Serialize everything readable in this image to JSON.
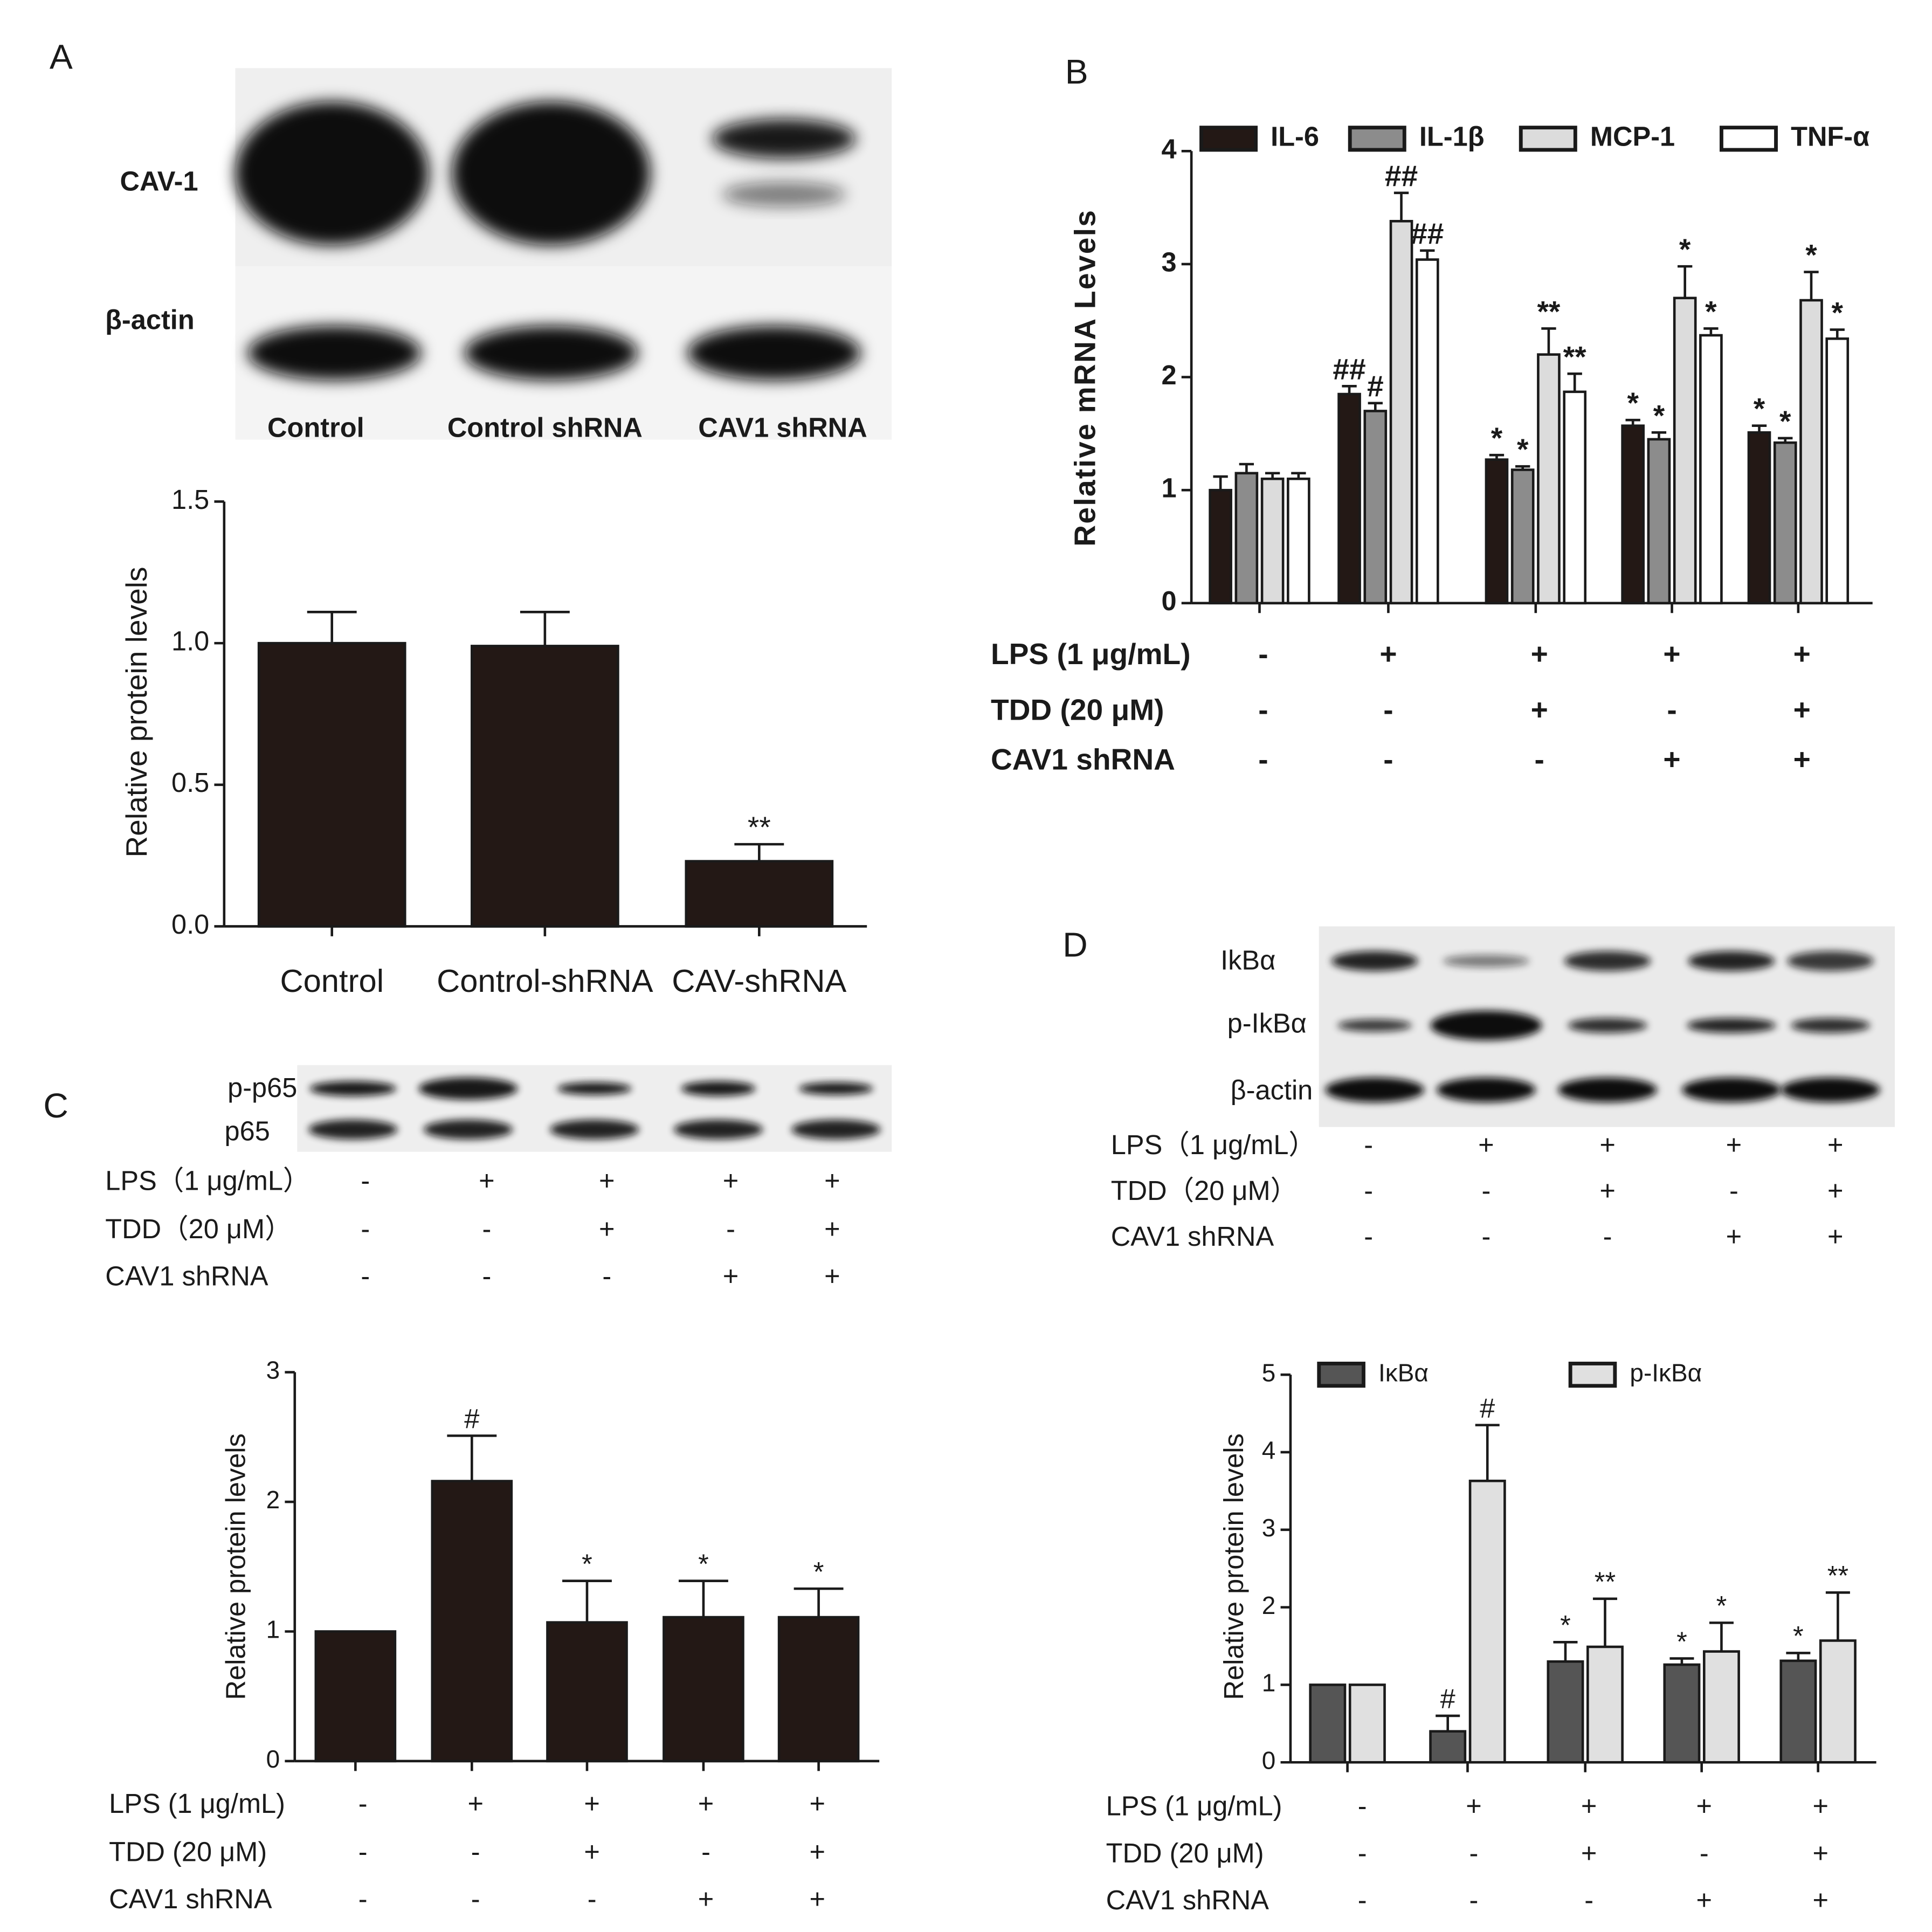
{
  "panel_labels": [
    "A",
    "B",
    "C",
    "D"
  ],
  "blot_a": {
    "rows": [
      "CAV-1",
      "β-actin"
    ],
    "lanes": [
      "Control",
      "Control shRNA",
      "CAV1 shRNA"
    ]
  },
  "blot_c": {
    "rows": [
      "p-p65",
      "p65"
    ],
    "conditions": [
      {
        "label": "LPS（1 μg/mL）",
        "signs": [
          "-",
          "+",
          "+",
          "+",
          "+"
        ]
      },
      {
        "label": "TDD（20 μM）",
        "signs": [
          "-",
          "-",
          "+",
          "-",
          "+"
        ]
      },
      {
        "label": "CAV1 shRNA",
        "signs": [
          "-",
          "-",
          "-",
          "+",
          "+"
        ]
      }
    ]
  },
  "blot_d": {
    "rows": [
      "IkBα",
      "p-IkBα",
      "β-actin"
    ],
    "conditions": [
      {
        "label": "LPS（1 μg/mL）",
        "signs": [
          "-",
          "+",
          "+",
          "+",
          "+"
        ]
      },
      {
        "label": "TDD（20 μM）",
        "signs": [
          "-",
          "-",
          "+",
          "-",
          "+"
        ]
      },
      {
        "label": "CAV1 shRNA",
        "signs": [
          "-",
          "-",
          "-",
          "+",
          "+"
        ]
      }
    ]
  },
  "chart_data": [
    {
      "type": "bar",
      "ylabel": "Relative protein levels",
      "categories": [
        "Control",
        "Control-shRNA",
        "CAV-shRNA"
      ],
      "series": [
        {
          "color": "#231815",
          "values": [
            1.0,
            0.99,
            0.23
          ],
          "errors": [
            0.11,
            0.12,
            0.06
          ],
          "annotations": [
            null,
            null,
            "**"
          ]
        }
      ],
      "ylim": [
        0,
        1.5
      ],
      "yticks": [
        {
          "value": 0,
          "label": "0.0"
        },
        0.5,
        {
          "value": 1,
          "label": "1.0"
        },
        1.5
      ]
    },
    {
      "type": "grouped-bar",
      "ylabel": "Relative mRNA Levels",
      "series": [
        {
          "name": "IL-6",
          "color": "#231815",
          "values": [
            1.0,
            1.85,
            1.27,
            1.57,
            1.51
          ],
          "errors": [
            0.12,
            0.07,
            0.04,
            0.05,
            0.06
          ],
          "annotations": [
            null,
            "##",
            "*",
            "*",
            "*"
          ]
        },
        {
          "name": "IL-1β",
          "color": "#8c8c8c",
          "values": [
            1.15,
            1.7,
            1.18,
            1.45,
            1.42
          ],
          "errors": [
            0.08,
            0.07,
            0.03,
            0.06,
            0.04
          ],
          "annotations": [
            null,
            "#",
            "*",
            "*",
            "*"
          ]
        },
        {
          "name": "MCP-1",
          "color": "#dcdcdc",
          "values": [
            1.1,
            3.38,
            2.2,
            2.7,
            2.68
          ],
          "errors": [
            0.05,
            0.25,
            0.23,
            0.28,
            0.25
          ],
          "annotations": [
            null,
            "##",
            "**",
            "*",
            "*"
          ]
        },
        {
          "name": "TNF-α",
          "color": "#ffffff",
          "values": [
            1.1,
            3.04,
            1.87,
            2.37,
            2.34
          ],
          "errors": [
            0.05,
            0.08,
            0.16,
            0.06,
            0.08
          ],
          "annotations": [
            null,
            "##",
            "**",
            "*",
            "*"
          ]
        }
      ],
      "conditions": [
        {
          "label": "LPS (1 μg/mL)",
          "signs": [
            "-",
            "+",
            "+",
            "+",
            "+"
          ]
        },
        {
          "label": "TDD (20 μM)",
          "signs": [
            "-",
            "-",
            "+",
            "-",
            "+"
          ]
        },
        {
          "label": "CAV1 shRNA",
          "signs": [
            "-",
            "-",
            "-",
            "+",
            "+"
          ]
        }
      ],
      "ylim": [
        0,
        4
      ],
      "yticks": [
        0,
        1,
        2,
        3,
        4
      ],
      "legend": "top"
    },
    {
      "type": "bar",
      "ylabel": "Relative protein levels",
      "series": [
        {
          "color": "#231815",
          "values": [
            1.0,
            2.16,
            1.07,
            1.11,
            1.11
          ],
          "errors": [
            null,
            0.35,
            0.32,
            0.28,
            0.22
          ],
          "annotations": [
            null,
            "#",
            "*",
            "*",
            "*"
          ]
        }
      ],
      "conditions": [
        {
          "label": "LPS (1 μg/mL)",
          "signs": [
            "-",
            "+",
            "+",
            "+",
            "+"
          ]
        },
        {
          "label": "TDD (20 μM)",
          "signs": [
            "-",
            "-",
            "+",
            "-",
            "+"
          ]
        },
        {
          "label": "CAV1 shRNA",
          "signs": [
            "-",
            "-",
            "-",
            "+",
            "+"
          ]
        }
      ],
      "ylim": [
        0,
        3
      ],
      "yticks": [
        0,
        1,
        2,
        3
      ]
    },
    {
      "type": "grouped-bar",
      "ylabel": "Relative protein levels",
      "series": [
        {
          "name": "IκBα",
          "color": "#555555",
          "values": [
            1.0,
            0.4,
            1.3,
            1.26,
            1.31
          ],
          "errors": [
            null,
            0.2,
            0.25,
            0.08,
            0.1
          ],
          "annotations": [
            null,
            "#",
            "*",
            "*",
            "*"
          ]
        },
        {
          "name": "p-IκBα",
          "color": "#e0e0e0",
          "values": [
            1.0,
            3.63,
            1.49,
            1.43,
            1.57
          ],
          "errors": [
            null,
            0.72,
            0.62,
            0.37,
            0.62
          ],
          "annotations": [
            null,
            "#",
            "**",
            "*",
            "**"
          ]
        }
      ],
      "conditions": [
        {
          "label": "LPS (1 μg/mL)",
          "signs": [
            "-",
            "+",
            "+",
            "+",
            "+"
          ]
        },
        {
          "label": "TDD (20 μM)",
          "signs": [
            "-",
            "-",
            "+",
            "-",
            "+"
          ]
        },
        {
          "label": "CAV1 shRNA",
          "signs": [
            "-",
            "-",
            "-",
            "+",
            "+"
          ]
        }
      ],
      "ylim": [
        0,
        5
      ],
      "yticks": [
        0,
        1,
        2,
        3,
        4,
        5
      ],
      "legend": "top"
    }
  ]
}
